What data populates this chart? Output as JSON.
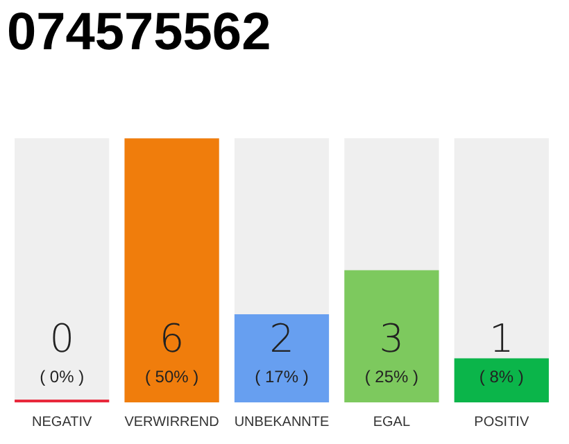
{
  "chart_data": {
    "type": "bar",
    "title": "074575562",
    "categories": [
      "NEGATIV",
      "VERWIRREND",
      "UNBEKANNTE",
      "EGAL",
      "POSITIV"
    ],
    "values": [
      0,
      6,
      2,
      3,
      1
    ],
    "colors": [
      "#e8283c",
      "#f07d0c",
      "#679ff0",
      "#7dc95e",
      "#0bb54a"
    ],
    "data_labels": true,
    "annotations": [
      "( 0% )",
      "( 50% )",
      "( 17% )",
      "( 25% )",
      "( 8% )"
    ],
    "tick_labels": "x",
    "grid": false,
    "legend": false
  }
}
